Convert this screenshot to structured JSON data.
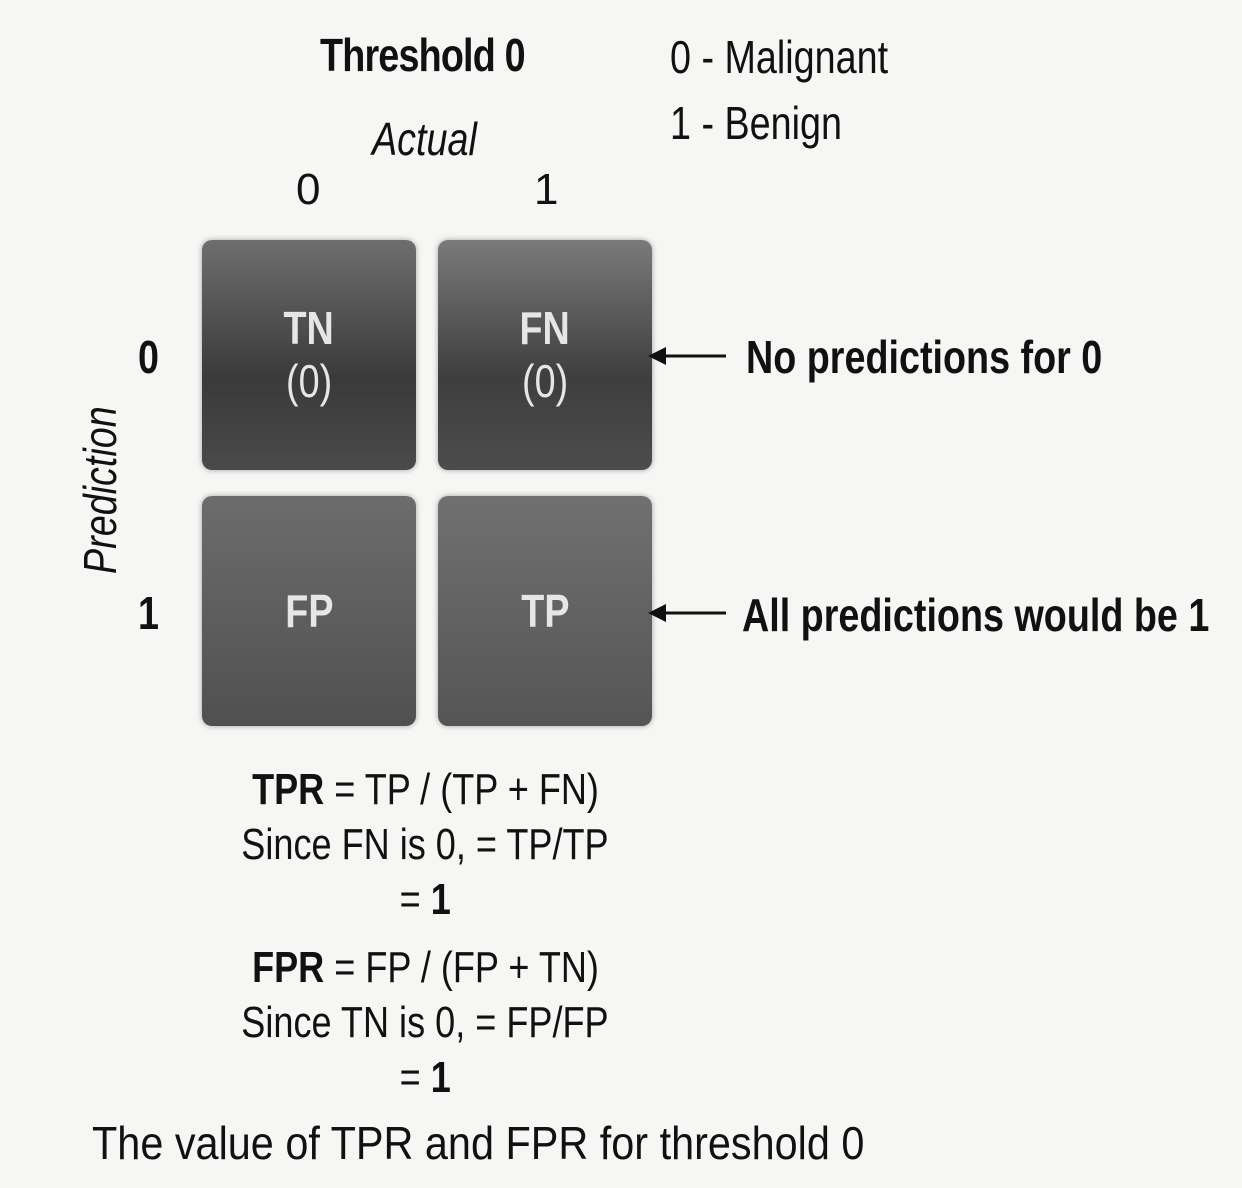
{
  "title": "Threshold 0",
  "legend": {
    "line0": "0 - Malignant",
    "line1": "1 - Benign"
  },
  "axes": {
    "actual_label": "Actual",
    "prediction_label": "Prediction",
    "columns": [
      "0",
      "1"
    ],
    "rows": [
      "0",
      "1"
    ]
  },
  "cells": {
    "tn": {
      "label": "TN",
      "count": "(0)"
    },
    "fn": {
      "label": "FN",
      "count": "(0)"
    },
    "fp": {
      "label": "FP"
    },
    "tp": {
      "label": "TP"
    }
  },
  "notes": {
    "row0": "No predictions for 0",
    "row1": "All predictions would be 1"
  },
  "formulas": {
    "tpr_name": "TPR",
    "tpr_eq": "= TP / (TP + FN)",
    "tpr_since": "Since FN is 0, = TP/TP",
    "tpr_result_prefix": "=",
    "tpr_result": "1",
    "fpr_name": "FPR",
    "fpr_eq": "= FP / (FP + TN)",
    "fpr_since": "Since TN is 0, = FP/FP",
    "fpr_result_prefix": "=",
    "fpr_result": "1"
  },
  "caption": "The value of TPR and FPR for threshold 0",
  "colors": {
    "cell_text": "#e6e6e6",
    "cell_dark": "#3a3a3a",
    "background": "#f6f6f4"
  }
}
